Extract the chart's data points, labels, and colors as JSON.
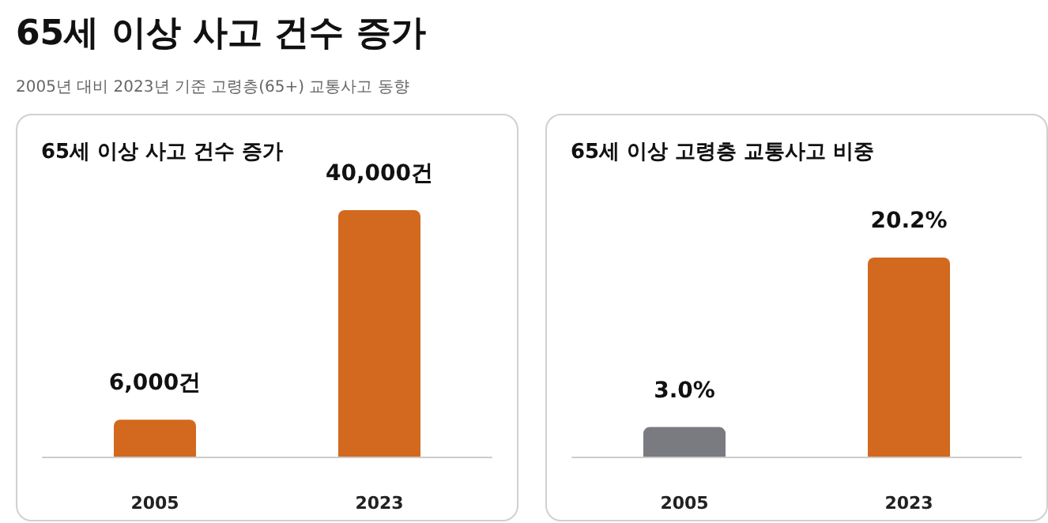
{
  "chart_data": [
    {
      "type": "other",
      "title": "65세 이상 사고 건수 증가",
      "subtitle": "2005년 대비 2023년 기준 고령층(65+) 교통사고 동향"
    },
    {
      "type": "bar",
      "title": "65세 이상 사고 건수 증가",
      "categories": [
        "2005",
        "2023"
      ],
      "values": [
        6000,
        40000
      ],
      "colors": [
        "#d2691e",
        "#d2691e"
      ],
      "value_labels": [
        "6,000건",
        "40,000건"
      ],
      "tick_labels": "x"
    },
    {
      "type": "bar",
      "title": "65세 이상 고령층 교통사고 비중",
      "categories": [
        "2005",
        "2023"
      ],
      "values": [
        3.0,
        20.2
      ],
      "colors": [
        "#7a7b80",
        "#d2691e"
      ],
      "value_labels": [
        "3.0%",
        "20.2%"
      ],
      "tick_labels": "x"
    }
  ]
}
